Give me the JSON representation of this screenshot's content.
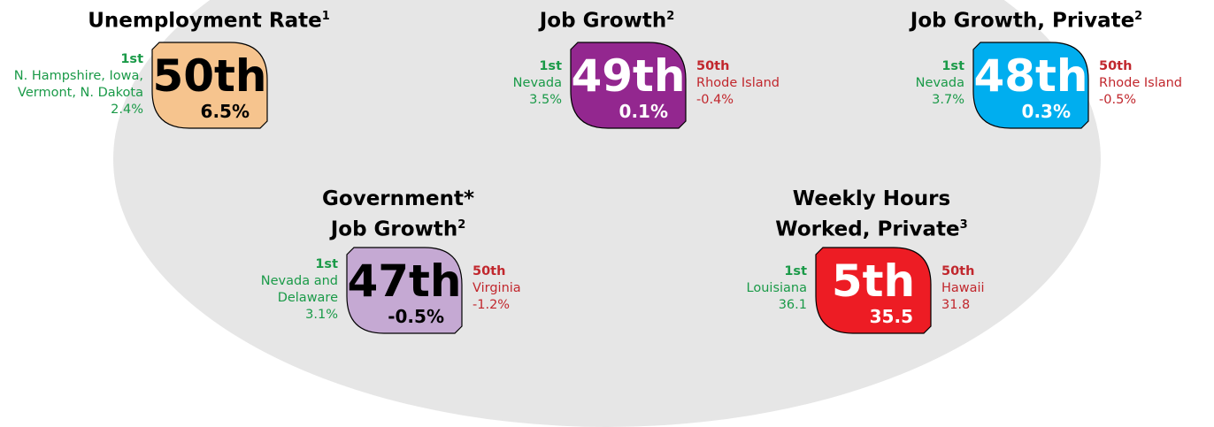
{
  "panels": [
    {
      "title": [
        "Unemployment Rate"
      ],
      "note": "1",
      "rank": "50th",
      "value": "6.5%",
      "color": "#f6c48e",
      "dark": false,
      "best": {
        "rank": "1st",
        "names": [
          "N. Hampshire, Iowa,",
          "Vermont, N. Dakota"
        ],
        "value": "2.4%"
      }
    },
    {
      "title": [
        "Job Growth"
      ],
      "note": "2",
      "rank": "49th",
      "value": "0.1%",
      "color": "#93278f",
      "dark": true,
      "best": {
        "rank": "1st",
        "names": [
          "Nevada"
        ],
        "value": "3.5%"
      },
      "worst": {
        "rank": "50th",
        "names": [
          "Rhode Island"
        ],
        "value": "-0.4%"
      }
    },
    {
      "title": [
        "Job Growth, Private"
      ],
      "note": "2",
      "rank": "48th",
      "value": "0.3%",
      "color": "#00aeef",
      "dark": true,
      "best": {
        "rank": "1st",
        "names": [
          "Nevada"
        ],
        "value": "3.7%"
      },
      "worst": {
        "rank": "50th",
        "names": [
          "Rhode Island"
        ],
        "value": "-0.5%"
      }
    },
    {
      "title": [
        "Government*",
        "Job Growth"
      ],
      "note": "2",
      "rank": "47th",
      "value": "-0.5%",
      "color": "#c5a9d3",
      "dark": false,
      "best": {
        "rank": "1st",
        "names": [
          "Nevada and",
          "Delaware"
        ],
        "value": "3.1%"
      },
      "worst": {
        "rank": "50th",
        "names": [
          "Virginia"
        ],
        "value": "-1.2%"
      }
    },
    {
      "title": [
        "Weekly Hours",
        "Worked, Private"
      ],
      "note": "3",
      "rank": "5th",
      "value": "35.5",
      "color": "#ed1c24",
      "dark": true,
      "best": {
        "rank": "1st",
        "names": [
          "Louisiana"
        ],
        "value": "36.1"
      },
      "worst": {
        "rank": "50th",
        "names": [
          "Hawaii"
        ],
        "value": "31.8"
      }
    }
  ]
}
